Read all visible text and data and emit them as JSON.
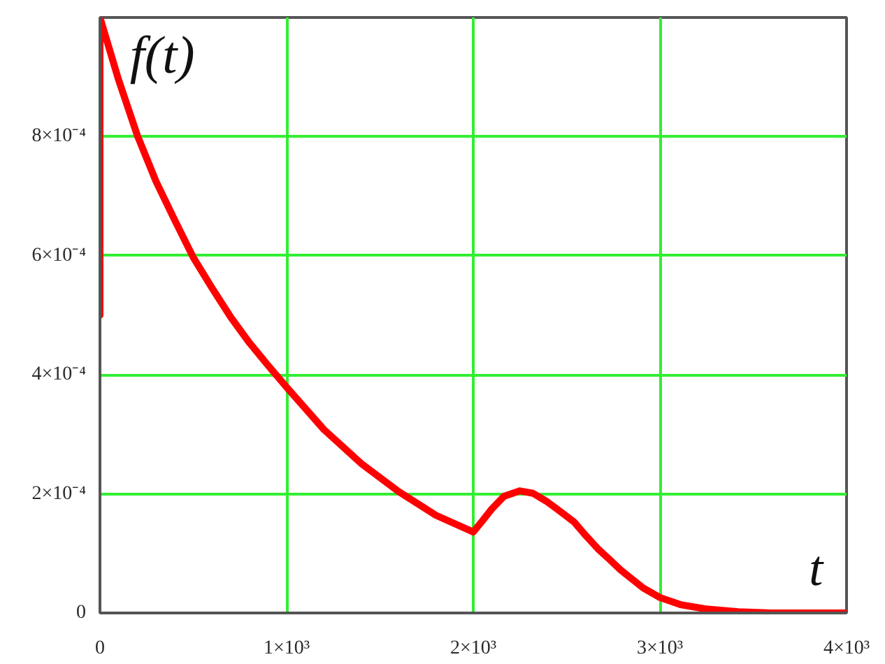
{
  "chart_data": {
    "type": "line",
    "xlabel": "t",
    "ylabel": "f(t)",
    "x": [
      0,
      0,
      100,
      200,
      300,
      400,
      500,
      600,
      700,
      800,
      900,
      1000,
      1200,
      1400,
      1600,
      1800,
      2000,
      2050,
      2100,
      2165,
      2250,
      2320,
      2390,
      2460,
      2540,
      2600,
      2667,
      2730,
      2787,
      2850,
      2910,
      3000,
      3110,
      3240,
      3420,
      3600,
      4000
    ],
    "values": [
      0.0005,
      0.001,
      0.000895,
      0.000802,
      0.000725,
      0.00066,
      0.000597,
      0.000546,
      0.000497,
      0.000454,
      0.000416,
      0.000379,
      0.000308,
      0.000251,
      0.000204,
      0.000164,
      0.000136,
      0.000155,
      0.000175,
      0.000196,
      0.000205,
      0.000201,
      0.000188,
      0.000172,
      0.000153,
      0.000131,
      0.000108,
      9e-05,
      7.3e-05,
      5.7e-05,
      4.2e-05,
      2.6e-05,
      1.4e-05,
      7e-06,
      2e-06,
      0,
      0
    ],
    "color": "#ff0000",
    "xlim": [
      0,
      4000
    ],
    "ylim": [
      0,
      0.001
    ],
    "xticks": [
      0,
      {
        "value": 1000,
        "label": "1×10³"
      },
      {
        "value": 2000,
        "label": "2×10³"
      },
      {
        "value": 3000,
        "label": "3×10³"
      },
      {
        "value": 4000,
        "label": "4×10³"
      }
    ],
    "yticks": [
      0,
      {
        "value": 0.0002,
        "label": "2×10⁻⁴"
      },
      {
        "value": 0.0004,
        "label": "4×10⁻⁴"
      },
      {
        "value": 0.0006,
        "label": "6×10⁻⁴"
      },
      {
        "value": 0.0008,
        "label": "8×10⁻⁴"
      }
    ],
    "grid": true
  }
}
